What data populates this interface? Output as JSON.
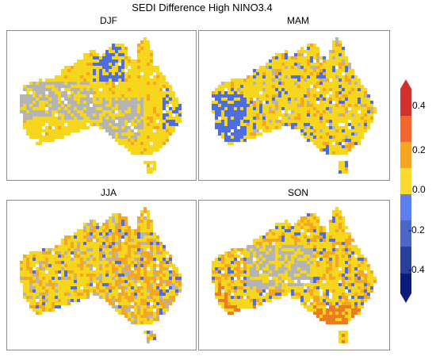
{
  "figure_title": "SEDI Difference High NINO3.4",
  "panels": [
    {
      "label": "DJF",
      "dominant": "mixed-yellow-grey-blue-north"
    },
    {
      "label": "MAM",
      "dominant": "yellow-blue-southwest"
    },
    {
      "label": "JJA",
      "dominant": "orange-yellow"
    },
    {
      "label": "SON",
      "dominant": "orange-yellow-grey"
    }
  ],
  "colorbar": {
    "ticks": [
      "0.4",
      "0.2",
      "0.0",
      "-0.2",
      "-0.4"
    ],
    "tick_values": [
      0.4,
      0.2,
      0.0,
      -0.2,
      -0.4
    ],
    "range": [
      -0.5,
      0.5
    ],
    "colors": [
      "#000080",
      "#1f3a9e",
      "#3b5bd6",
      "#6b8cf0",
      "#ffeb3b",
      "#ffc107",
      "#ff9800",
      "#ff5722",
      "#d32f2f"
    ]
  },
  "legend_colors": {
    "grey": "#b4b4b4",
    "yellow": "#f7d61e",
    "orange": "#f5a623",
    "blue": "#4e6ee0",
    "dark_orange": "#ee7b22"
  }
}
